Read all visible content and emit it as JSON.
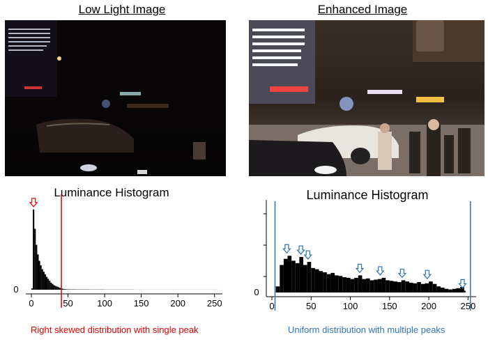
{
  "panels": {
    "left": {
      "title": "Low Light Image",
      "histogram_title": "Luminance Histogram",
      "caption": "Right skewed distribution with single peak",
      "caption_color": "#e00000",
      "marker_color": "#e00000"
    },
    "right": {
      "title": "Enhanced Image",
      "histogram_title": "Luminance Histogram",
      "caption": "Uniform distribution with multiple peaks",
      "caption_color": "#2e74b5",
      "marker_color": "#2e74b5"
    }
  },
  "chart_data": [
    {
      "type": "bar",
      "title": "Luminance Histogram",
      "xlabel": "",
      "ylabel": "",
      "xlim": [
        0,
        255
      ],
      "x_ticks": [
        0,
        50,
        100,
        150,
        200,
        250
      ],
      "y_ticks": [
        0
      ],
      "x": [
        0,
        2,
        4,
        6,
        8,
        10,
        12,
        14,
        16,
        18,
        20,
        22,
        24,
        26,
        28,
        30,
        32,
        34,
        36,
        38,
        40,
        42,
        44,
        46,
        48,
        50,
        60,
        80,
        100,
        120,
        140,
        160,
        180,
        200,
        220,
        240,
        255
      ],
      "values": [
        2,
        125,
        95,
        70,
        55,
        45,
        38,
        32,
        28,
        24,
        20,
        17,
        14,
        11,
        9,
        7,
        6,
        5,
        4,
        3,
        2,
        1.5,
        1,
        0.8,
        0.6,
        0.5,
        0.4,
        0.3,
        0.2,
        0.2,
        0.1,
        0.1,
        0.1,
        0.1,
        0.1,
        0.1,
        0
      ],
      "ylim": [
        0,
        140
      ],
      "annotations": [
        {
          "kind": "arrow",
          "x": 3
        },
        {
          "kind": "vline",
          "x": 41
        }
      ]
    },
    {
      "type": "bar",
      "title": "Luminance Histogram",
      "xlabel": "",
      "ylabel": "",
      "xlim": [
        0,
        255
      ],
      "x_ticks": [
        0,
        50,
        100,
        150,
        200,
        250
      ],
      "y_ticks": [
        0
      ],
      "x": [
        5,
        10,
        15,
        20,
        25,
        30,
        35,
        40,
        45,
        50,
        55,
        60,
        65,
        70,
        75,
        80,
        85,
        90,
        95,
        100,
        105,
        110,
        115,
        120,
        125,
        130,
        135,
        140,
        145,
        150,
        155,
        160,
        165,
        170,
        175,
        180,
        185,
        190,
        195,
        200,
        205,
        210,
        215,
        220,
        225,
        230,
        235,
        240,
        245
      ],
      "values": [
        10,
        45,
        55,
        60,
        52,
        48,
        58,
        45,
        50,
        40,
        38,
        35,
        33,
        30,
        32,
        28,
        27,
        25,
        24,
        22,
        24,
        28,
        22,
        23,
        20,
        21,
        22,
        24,
        20,
        19,
        18,
        17,
        20,
        18,
        16,
        15,
        17,
        14,
        15,
        18,
        14,
        10,
        8,
        6,
        5,
        6,
        7,
        9,
        3
      ],
      "ylim": [
        0,
        140
      ],
      "annotations": [
        {
          "kind": "arrow",
          "x": 19
        },
        {
          "kind": "arrow",
          "x": 37
        },
        {
          "kind": "arrow",
          "x": 46
        },
        {
          "kind": "arrow",
          "x": 112
        },
        {
          "kind": "arrow",
          "x": 138
        },
        {
          "kind": "arrow",
          "x": 166
        },
        {
          "kind": "arrow",
          "x": 198
        },
        {
          "kind": "arrow",
          "x": 243
        },
        {
          "kind": "vline",
          "x": 4
        },
        {
          "kind": "vline",
          "x": 253
        }
      ]
    }
  ]
}
